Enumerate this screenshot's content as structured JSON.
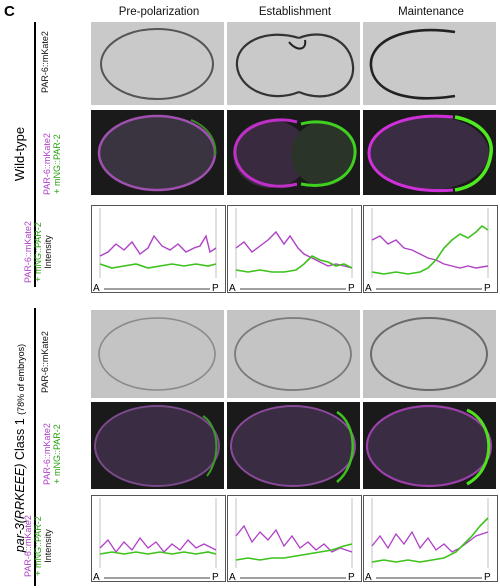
{
  "panel_letter": "C",
  "columns": [
    "Pre-polarization",
    "Establishment",
    "Maintenance"
  ],
  "sections": {
    "top": "Wild-type",
    "bottom_gene": "par-3(RRKEEE)",
    "bottom_class": "Class 1",
    "bottom_note": "(78% of embryos)"
  },
  "row_labels": {
    "par6": "PAR-6::mKate2",
    "merge_line1": "PAR-6::mKate2",
    "merge_line2": "+ mNG::PAR-2",
    "intensity": "Intensity"
  },
  "axis": {
    "start": "A",
    "end": "P"
  },
  "colors": {
    "magenta": "#b040c8",
    "green": "#3cc21a",
    "merge_bg": "#2a1830"
  }
}
